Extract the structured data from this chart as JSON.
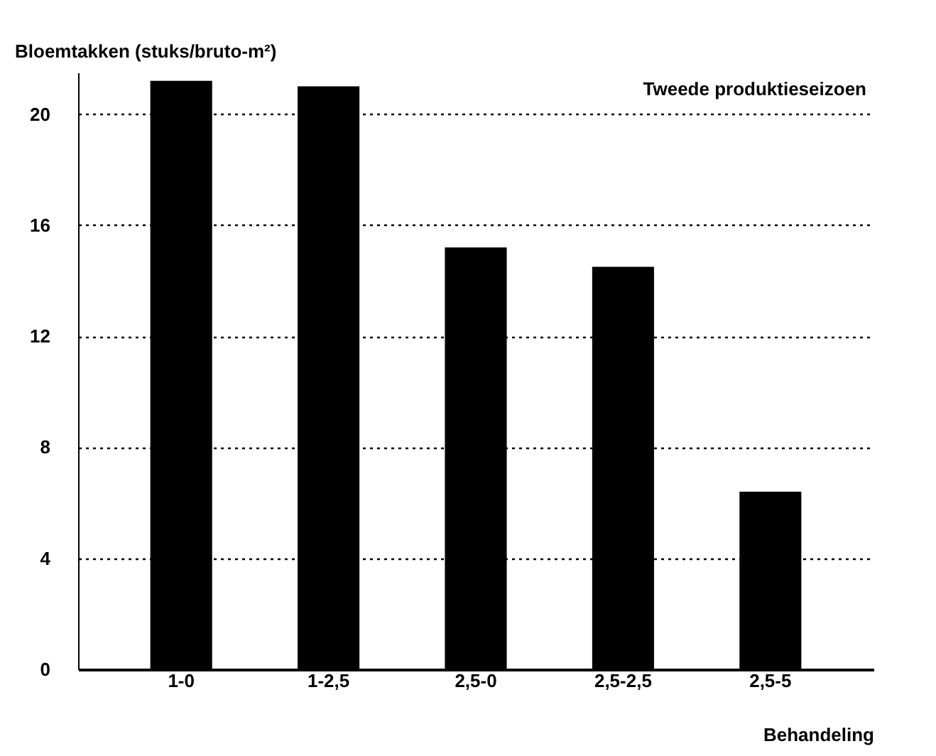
{
  "chart_data": {
    "type": "bar",
    "ylabel": "Bloemtakken (stuks/bruto-m²)",
    "xlabel": "Behandeling",
    "annotations": [
      "Tweede produktieseizoen"
    ],
    "categories": [
      "1-0",
      "1-2,5",
      "2,5-0",
      "2,5-2,5",
      "2,5-5"
    ],
    "values": [
      21.2,
      21.0,
      15.2,
      14.5,
      6.4
    ],
    "color": "#000000",
    "ylim": [
      0,
      21.5
    ],
    "yticks": [
      0,
      4,
      8,
      12,
      16,
      20
    ],
    "grid": "y"
  }
}
